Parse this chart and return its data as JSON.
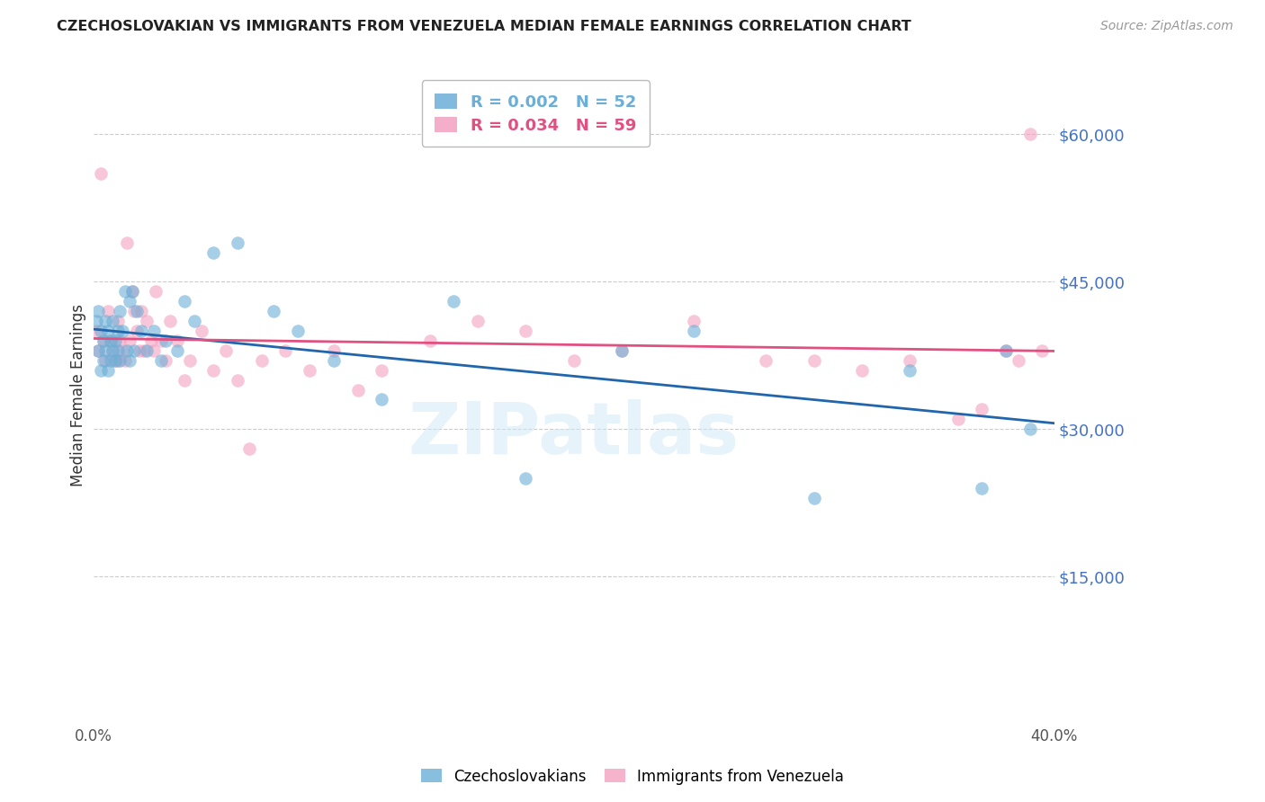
{
  "title": "CZECHOSLOVAKIAN VS IMMIGRANTS FROM VENEZUELA MEDIAN FEMALE EARNINGS CORRELATION CHART",
  "source": "Source: ZipAtlas.com",
  "ylabel": "Median Female Earnings",
  "yticks": [
    0,
    15000,
    30000,
    45000,
    60000
  ],
  "ytick_labels": [
    "",
    "$15,000",
    "$30,000",
    "$45,000",
    "$60,000"
  ],
  "ymin": 0,
  "ymax": 67000,
  "xmin": 0.0,
  "xmax": 0.4,
  "watermark": "ZIPatlas",
  "blue_color": "#6baed6",
  "pink_color": "#f4a0c0",
  "blue_line_color": "#2166ac",
  "pink_line_color": "#e05080",
  "scatter_alpha": 0.6,
  "scatter_size": 110,
  "blue_x": [
    0.001,
    0.002,
    0.002,
    0.003,
    0.003,
    0.004,
    0.004,
    0.005,
    0.005,
    0.006,
    0.006,
    0.007,
    0.007,
    0.008,
    0.008,
    0.009,
    0.009,
    0.01,
    0.01,
    0.011,
    0.011,
    0.012,
    0.013,
    0.014,
    0.015,
    0.015,
    0.016,
    0.017,
    0.018,
    0.02,
    0.022,
    0.025,
    0.028,
    0.03,
    0.035,
    0.038,
    0.042,
    0.05,
    0.06,
    0.075,
    0.085,
    0.1,
    0.12,
    0.15,
    0.18,
    0.22,
    0.25,
    0.3,
    0.34,
    0.37,
    0.38,
    0.39
  ],
  "blue_y": [
    41000,
    38000,
    42000,
    40000,
    36000,
    39000,
    37000,
    41000,
    38000,
    40000,
    36000,
    37000,
    39000,
    38000,
    41000,
    37000,
    39000,
    40000,
    38000,
    42000,
    37000,
    40000,
    44000,
    38000,
    43000,
    37000,
    44000,
    38000,
    42000,
    40000,
    38000,
    40000,
    37000,
    39000,
    38000,
    43000,
    41000,
    48000,
    49000,
    42000,
    40000,
    37000,
    33000,
    43000,
    25000,
    38000,
    40000,
    23000,
    36000,
    24000,
    38000,
    30000
  ],
  "pink_x": [
    0.001,
    0.002,
    0.003,
    0.004,
    0.005,
    0.006,
    0.007,
    0.008,
    0.009,
    0.01,
    0.01,
    0.011,
    0.012,
    0.013,
    0.014,
    0.015,
    0.016,
    0.017,
    0.018,
    0.019,
    0.02,
    0.021,
    0.022,
    0.024,
    0.025,
    0.026,
    0.028,
    0.03,
    0.032,
    0.035,
    0.038,
    0.04,
    0.045,
    0.05,
    0.055,
    0.06,
    0.065,
    0.07,
    0.08,
    0.09,
    0.1,
    0.11,
    0.12,
    0.14,
    0.16,
    0.18,
    0.2,
    0.22,
    0.25,
    0.28,
    0.3,
    0.32,
    0.34,
    0.36,
    0.37,
    0.38,
    0.385,
    0.39,
    0.395
  ],
  "pink_y": [
    40000,
    38000,
    56000,
    39000,
    37000,
    42000,
    39000,
    38000,
    37000,
    41000,
    37000,
    39000,
    38000,
    37000,
    49000,
    39000,
    44000,
    42000,
    40000,
    38000,
    42000,
    38000,
    41000,
    39000,
    38000,
    44000,
    39000,
    37000,
    41000,
    39000,
    35000,
    37000,
    40000,
    36000,
    38000,
    35000,
    28000,
    37000,
    38000,
    36000,
    38000,
    34000,
    36000,
    39000,
    41000,
    40000,
    37000,
    38000,
    41000,
    37000,
    37000,
    36000,
    37000,
    31000,
    32000,
    38000,
    37000,
    60000,
    38000
  ]
}
